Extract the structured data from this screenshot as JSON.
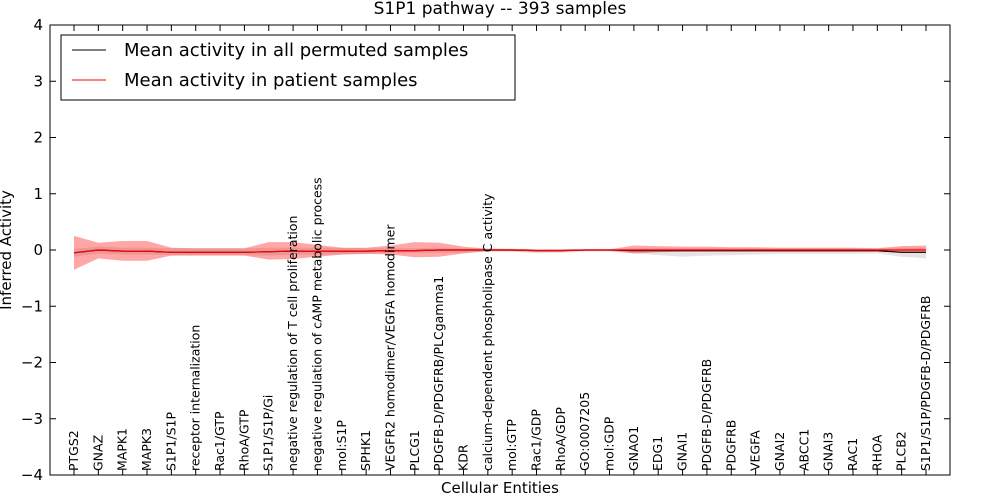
{
  "chart_data": {
    "type": "line",
    "title": "S1P1 pathway -- 393 samples",
    "xlabel": "Cellular Entities",
    "ylabel": "Inferred Activity",
    "ylim": [
      -4,
      4
    ],
    "yticks": [
      -4,
      -3,
      -2,
      -1,
      0,
      1,
      2,
      3,
      4
    ],
    "ytick_labels": [
      "−4",
      "−3",
      "−2",
      "−1",
      "0",
      "1",
      "2",
      "3",
      "4"
    ],
    "grid": false,
    "legend_position": "top-left",
    "categories": [
      "PTGS2",
      "GNAZ",
      "MAPK1",
      "MAPK3",
      "S1P1/S1P",
      "receptor internalization",
      "Rac1/GTP",
      "RhoA/GTP",
      "S1P1/S1P/Gi",
      "negative regulation of T cell proliferation",
      "negative regulation of cAMP metabolic process",
      "mol:S1P",
      "SPHK1",
      "VEGFR2 homodimer/VEGFA homodimer",
      "PLCG1",
      "PDGFB-D/PDGFRB/PLCgamma1",
      "KDR",
      "calcium-dependent phospholipase C activity",
      "mol:GTP",
      "Rac1/GDP",
      "RhoA/GDP",
      "GO:0007205",
      "mol:GDP",
      "GNAO1",
      "EDG1",
      "GNAI1",
      "PDGFB-D/PDGFRB",
      "PDGFRB",
      "VEGFA",
      "GNAI2",
      "ABCC1",
      "GNAI3",
      "RAC1",
      "RHOA",
      "PLCB2",
      "S1P1/S1P/PDGFB-D/PDGFRB"
    ],
    "series": [
      {
        "name": "Mean activity in all permuted samples",
        "color": "#000000",
        "values": [
          -0.05,
          0.0,
          -0.02,
          -0.02,
          -0.04,
          -0.04,
          -0.04,
          -0.04,
          -0.03,
          -0.02,
          -0.02,
          -0.02,
          -0.02,
          -0.01,
          -0.01,
          0.0,
          0.0,
          0.0,
          0.0,
          -0.01,
          -0.01,
          0.0,
          0.0,
          -0.01,
          -0.01,
          -0.01,
          -0.01,
          -0.01,
          -0.01,
          -0.01,
          -0.01,
          -0.01,
          -0.01,
          -0.01,
          -0.04,
          -0.04
        ],
        "band_upper": [
          0.02,
          0.06,
          0.04,
          0.04,
          0.03,
          0.03,
          0.03,
          0.03,
          0.04,
          0.04,
          0.04,
          0.04,
          0.03,
          0.03,
          0.03,
          0.03,
          0.03,
          0.03,
          0.02,
          0.02,
          0.02,
          0.02,
          0.02,
          0.03,
          0.03,
          0.03,
          0.03,
          0.03,
          0.03,
          0.03,
          0.03,
          0.03,
          0.03,
          0.03,
          0.04,
          0.04
        ],
        "band_lower": [
          -0.12,
          -0.06,
          -0.08,
          -0.08,
          -0.09,
          -0.09,
          -0.09,
          -0.09,
          -0.1,
          -0.08,
          -0.08,
          -0.08,
          -0.07,
          -0.05,
          -0.05,
          -0.05,
          -0.05,
          -0.03,
          -0.03,
          -0.06,
          -0.05,
          -0.03,
          -0.03,
          -0.06,
          -0.09,
          -0.12,
          -0.1,
          -0.09,
          -0.08,
          -0.07,
          -0.07,
          -0.07,
          -0.07,
          -0.06,
          -0.12,
          -0.15
        ]
      },
      {
        "name": "Mean activity in patient samples",
        "color": "#ff0000",
        "values": [
          -0.05,
          0.0,
          -0.02,
          -0.02,
          -0.04,
          -0.04,
          -0.04,
          -0.04,
          -0.03,
          -0.02,
          -0.02,
          -0.02,
          -0.02,
          -0.01,
          -0.01,
          0.0,
          0.0,
          0.0,
          0.0,
          -0.01,
          -0.01,
          0.0,
          0.0,
          0.0,
          0.0,
          0.0,
          0.0,
          0.0,
          0.0,
          0.0,
          0.0,
          0.0,
          0.0,
          0.0,
          0.0,
          0.0
        ],
        "band_upper": [
          0.25,
          0.13,
          0.16,
          0.16,
          0.04,
          0.03,
          0.03,
          0.03,
          0.14,
          0.14,
          0.09,
          0.04,
          0.04,
          0.08,
          0.14,
          0.13,
          0.06,
          0.02,
          0.02,
          0.01,
          0.01,
          0.01,
          0.01,
          0.08,
          0.07,
          0.06,
          0.06,
          0.05,
          0.05,
          0.04,
          0.04,
          0.04,
          0.04,
          0.03,
          0.07,
          0.08
        ],
        "band_lower": [
          -0.35,
          -0.15,
          -0.19,
          -0.19,
          -0.1,
          -0.1,
          -0.1,
          -0.1,
          -0.17,
          -0.16,
          -0.12,
          -0.08,
          -0.07,
          -0.08,
          -0.13,
          -0.12,
          -0.06,
          -0.02,
          -0.02,
          -0.03,
          -0.03,
          -0.01,
          -0.01,
          -0.06,
          -0.04,
          -0.03,
          -0.03,
          -0.03,
          -0.03,
          -0.03,
          -0.03,
          -0.03,
          -0.03,
          -0.03,
          -0.05,
          -0.05
        ]
      }
    ]
  }
}
